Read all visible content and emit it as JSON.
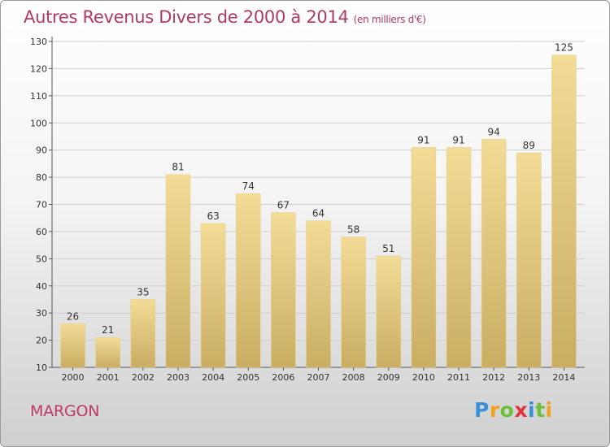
{
  "title": "Autres Revenus Divers de 2000 à 2014",
  "subtitle": "(en milliers d'€)",
  "location": "MARGON",
  "logo": {
    "letters": [
      {
        "ch": "P",
        "color": "#3a8fd8"
      },
      {
        "ch": "r",
        "color": "#f2a01e"
      },
      {
        "ch": "o",
        "color": "#6cbf3a"
      },
      {
        "ch": "x",
        "color": "#e2333b"
      },
      {
        "ch": "i",
        "color": "#3a8fd8"
      },
      {
        "ch": "t",
        "color": "#6cbf3a"
      },
      {
        "ch": "i",
        "color": "#f2a01e"
      }
    ]
  },
  "chart_data": {
    "type": "bar",
    "categories": [
      "2000",
      "2001",
      "2002",
      "2003",
      "2004",
      "2005",
      "2006",
      "2007",
      "2008",
      "2009",
      "2010",
      "2011",
      "2012",
      "2013",
      "2014"
    ],
    "values": [
      26,
      21,
      35,
      81,
      63,
      74,
      67,
      64,
      58,
      51,
      91,
      91,
      94,
      89,
      125
    ],
    "ylim": [
      10,
      130
    ],
    "yticks": [
      10,
      20,
      30,
      40,
      50,
      60,
      70,
      80,
      90,
      100,
      110,
      120,
      130
    ],
    "grid": true,
    "bar_color_top": "#f3dc96",
    "bar_color_bottom": "#c9ad63",
    "grid_color": "#cfcfcf",
    "title_color": "#b03a64"
  }
}
